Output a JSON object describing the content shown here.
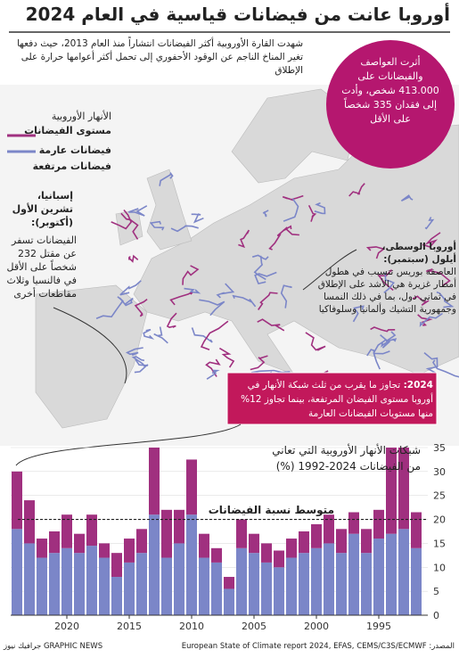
{
  "header": {
    "title": "أوروبا عانت من فيضانات قياسية في العام 2024",
    "subtitle": "شهدت القارة الأوروبية أكثر الفيضانات انتشاراً منذ العام 2013، حيث دفعها تغير المناخ الناجم عن الوقود الأحفوري إلى تحمل أكثر أعوامها حرارة على الإطلاق"
  },
  "map": {
    "legend_title": "الأنهار الأوروبية",
    "legend_subtitle": "مستوى الفيضانات",
    "storm_note": "أثرت العواصف والفيضانات على 413.000 شخص، وأدت إلى فقدان 335 شخصاً على الأقل",
    "spain_title": "إسبانيا، تشرين الأول (أكتوبر):",
    "spain_note": "الفيضانات تسفر عن مقتل 232 شخصاً على الأقل في فالنسيا وثلاث مقاطعات أخرى",
    "central_title": "أوروبا الوسطى، أيلول (سبتمبر):",
    "central_note": "العاصفة بوريس تتسبب في هطول أمطار غزيرة هي الأشد على الإطلاق في ثماني دول، بما في ذلك النمسا وجمهورية التشيك وألمانيا وسلوفاكيا",
    "callout_year": "2024:",
    "callout_note": "تجاوز ما يقرب من ثلث شبكة الأنهار في أوروبا مستوى الفيضان المرتفعة، بينما تجاوز 12% منها مستويات الفيضانات العارمة"
  },
  "chart_data": {
    "type": "bar",
    "stacked": true,
    "title": "شبكات الأنهار الأوروبية التي تعاني من الفيضانات 2024-1992 (%)",
    "categories": [
      null,
      null,
      null,
      null,
      "2020",
      null,
      null,
      null,
      null,
      "2015",
      null,
      null,
      null,
      null,
      "2010",
      null,
      null,
      null,
      null,
      "2005",
      null,
      null,
      null,
      null,
      "2000",
      null,
      null,
      null,
      null,
      "1995",
      null,
      null,
      null
    ],
    "series": [
      {
        "name": "فيضانات مرتفعة",
        "color": "#7b86c8",
        "values": [
          18,
          15,
          12,
          13,
          14,
          13,
          14.5,
          12,
          8,
          11,
          13,
          21,
          12,
          15,
          21,
          12,
          11,
          5.5,
          14,
          13,
          11,
          10,
          12,
          13,
          14,
          15,
          13,
          17,
          13,
          16,
          17,
          18,
          14
        ]
      },
      {
        "name": "فيضانات عارمة",
        "color": "#a0307f",
        "values": [
          12,
          9,
          4,
          4.5,
          7,
          4,
          6.5,
          3,
          5,
          5,
          5,
          14,
          10,
          7,
          11.5,
          5,
          3,
          2.5,
          6,
          4,
          4,
          3.5,
          4,
          4.5,
          5,
          6,
          5,
          4.5,
          5,
          6,
          18,
          17,
          7.5
        ]
      }
    ],
    "average_label": "متوسط نسبة الفيضانات",
    "average": 20,
    "ylim": [
      0,
      35
    ],
    "yticks": [
      0,
      5,
      10,
      15,
      20,
      25,
      30,
      35
    ],
    "grid": true
  },
  "footer": {
    "source": "المصدر: European State of Climate report 2024, EFAS, CEMS/C3S/ECMWF",
    "credit": "GRAPHIC NEWS جرافيك نيوز"
  }
}
